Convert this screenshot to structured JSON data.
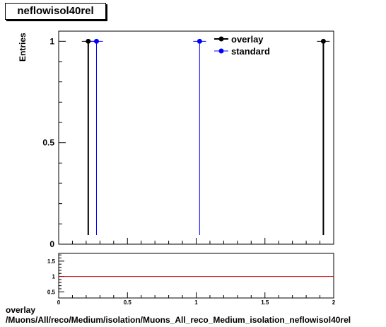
{
  "title": "neflowisol40rel",
  "chart_data": [
    {
      "type": "scatter",
      "title": "neflowisol40rel",
      "ylabel": "Entries",
      "xlim": [
        0,
        2
      ],
      "ylim": [
        0,
        1.05
      ],
      "y_ticks": [
        "0",
        "0.5",
        "1"
      ],
      "legend_placement": "top-right",
      "series": [
        {
          "name": "overlay",
          "color": "#000000",
          "x": [
            0.215,
            1.925
          ],
          "y": [
            1,
            1
          ]
        },
        {
          "name": "standard",
          "color": "#0000ff",
          "x": [
            0.275,
            1.025
          ],
          "y": [
            1,
            1
          ]
        }
      ]
    },
    {
      "type": "line",
      "xlim": [
        0,
        2
      ],
      "ylim": [
        0.3,
        1.75
      ],
      "x_ticks": [
        "0",
        "0.5",
        "1",
        "1.5",
        "2"
      ],
      "y_ticks": [
        "0.5",
        "1",
        "1.5"
      ],
      "reference_line": {
        "y": 1,
        "color": "#cc0000"
      }
    }
  ],
  "caption": {
    "line1": "overlay",
    "line2": "/Muons/All/reco/Medium/isolation/Muons_All_reco_Medium_isolation_neflowisol40rel"
  }
}
